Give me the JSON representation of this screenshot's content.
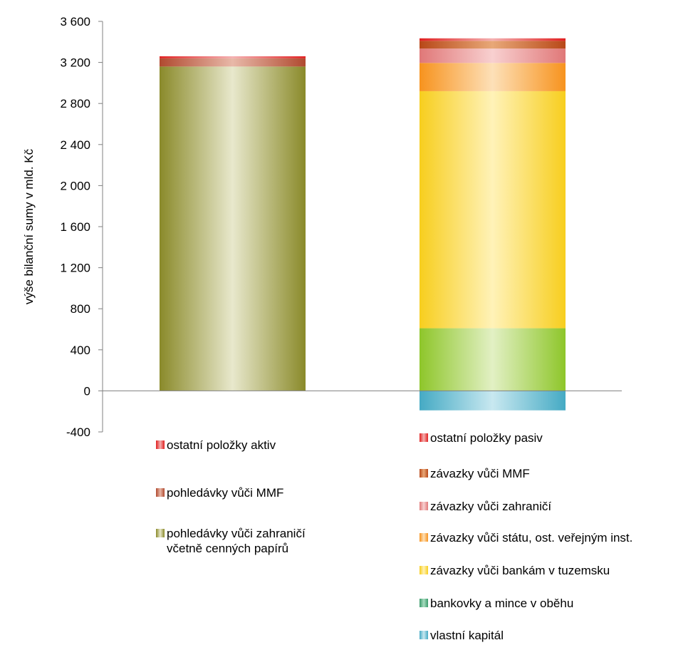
{
  "chart_data": {
    "type": "bar",
    "stacked": true,
    "ylabel": "výše bilanční sumy v mld. Kč",
    "ylim": [
      -400,
      3600
    ],
    "yticks": [
      "3 600",
      "3 200",
      "2 800",
      "2 400",
      "2 000",
      "1 600",
      "1 200",
      "800",
      "400",
      "0",
      "-400"
    ],
    "grid": false,
    "legend_position": "bottom",
    "stacks": [
      {
        "segments": [
          {
            "name": "pohledávky vůči zahraničí\nvčetně cenných papírů",
            "value": 3160,
            "color": "#8a8a2a",
            "highlight": "#e8e8cc"
          },
          {
            "name": "pohledávky vůči MMF",
            "value": 80,
            "color": "#b04a30",
            "highlight": "#e8b8a8"
          },
          {
            "name": "ostatní položky aktiv",
            "value": 20,
            "color": "#e02020",
            "highlight": "#f4b0b0"
          }
        ]
      },
      {
        "segments": [
          {
            "name": "vlastní kapitál",
            "value": -190,
            "color": "#45aac4",
            "highlight": "#c8e8f0"
          },
          {
            "name": "bankovky a mince v oběhu",
            "value": 610,
            "color": "#8ec62a",
            "highlight": "#e2f0c4"
          },
          {
            "name": "závazky vůči bankám v tuzemsku",
            "value": 2310,
            "color": "#f7ce1e",
            "highlight": "#fff2b8"
          },
          {
            "name": "závazky vůči státu, ost. veřejným inst.",
            "value": 275,
            "color": "#f7931e",
            "highlight": "#fde0b8"
          },
          {
            "name": "závazky vůči zahraničí",
            "value": 140,
            "color": "#e07878",
            "highlight": "#f8d0d0"
          },
          {
            "name": "závazky vůči MMF",
            "value": 75,
            "color": "#b84818",
            "highlight": "#e8a878"
          },
          {
            "name": "ostatní položky pasiv",
            "value": 25,
            "color": "#e02020",
            "highlight": "#f4b0b0"
          }
        ]
      }
    ],
    "legends": [
      {
        "items": [
          {
            "label": "ostatní položky aktiv",
            "color": "#e02020",
            "highlight": "#f4b0b0"
          },
          {
            "label": "pohledávky vůči MMF",
            "color": "#b04a30",
            "highlight": "#e8b8a8"
          },
          {
            "label": "pohledávky vůči zahraničí\nvčetně cenných papírů",
            "color": "#8a8a2a",
            "highlight": "#e8e8cc"
          }
        ]
      },
      {
        "items": [
          {
            "label": "ostatní položky pasiv",
            "color": "#e02020",
            "highlight": "#f4b0b0"
          },
          {
            "label": "závazky vůči MMF",
            "color": "#b84818",
            "highlight": "#e8a878"
          },
          {
            "label": "závazky vůči zahraničí",
            "color": "#e07878",
            "highlight": "#f8d0d0"
          },
          {
            "label": "závazky vůči státu, ost. veřejným inst.",
            "color": "#f7931e",
            "highlight": "#fde0b8"
          },
          {
            "label": "závazky vůči bankám v tuzemsku",
            "color": "#f7ce1e",
            "highlight": "#fff2b8"
          },
          {
            "label": "bankovky a mince v oběhu",
            "color": "#3a9a6a",
            "highlight": "#a8dcc0"
          },
          {
            "label": "vlastní kapitál",
            "color": "#45aac4",
            "highlight": "#c8e8f0"
          }
        ]
      }
    ]
  }
}
